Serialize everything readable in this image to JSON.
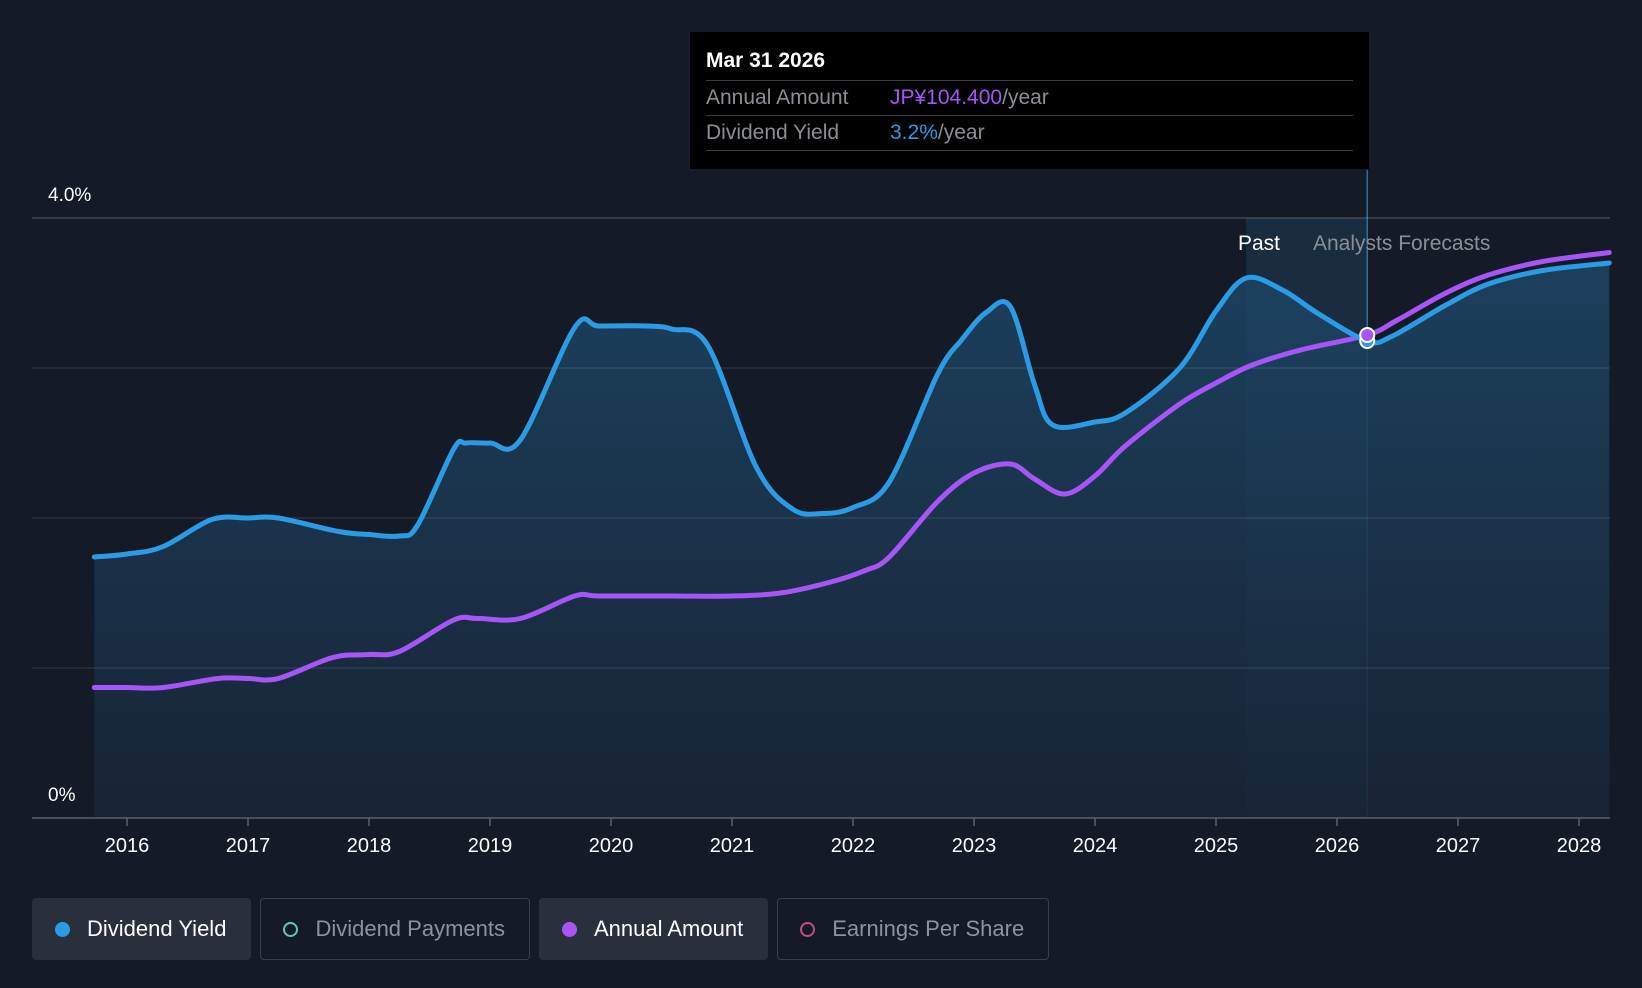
{
  "tooltip": {
    "date": "Mar 31 2026",
    "rows": [
      {
        "label": "Annual Amount",
        "value": "JP¥104.400",
        "unit": "/year"
      },
      {
        "label": "Dividend Yield",
        "value": "3.2%",
        "unit": "/year"
      }
    ]
  },
  "legend": [
    {
      "label": "Dividend Yield",
      "color": "#2b9be6",
      "active": true,
      "filled": true
    },
    {
      "label": "Dividend Payments",
      "color": "#5bc8c0",
      "active": false,
      "filled": false
    },
    {
      "label": "Annual Amount",
      "color": "#a855f7",
      "active": true,
      "filled": true
    },
    {
      "label": "Earnings Per Share",
      "color": "#c04c86",
      "active": false,
      "filled": false
    }
  ],
  "chart_data": {
    "type": "line",
    "ylim": [
      0,
      4.0
    ],
    "y_tick_labels": [
      "0%",
      "4.0%"
    ],
    "grid": true,
    "x_tick_labels": [
      "2016",
      "2017",
      "2018",
      "2019",
      "2020",
      "2021",
      "2022",
      "2023",
      "2024",
      "2025",
      "2026",
      "2027",
      "2028"
    ],
    "region_labels": {
      "past": "Past",
      "forecast": "Analysts Forecasts"
    },
    "highlight_x": 2026.25,
    "forecast_band": [
      2025.25,
      2026.25
    ],
    "series": [
      {
        "name": "Dividend Yield",
        "color": "#2b9be6",
        "area": true,
        "points": [
          [
            2015.73,
            1.74
          ],
          [
            2016.0,
            1.76
          ],
          [
            2016.3,
            1.81
          ],
          [
            2016.7,
            1.99
          ],
          [
            2017.0,
            2.0
          ],
          [
            2017.25,
            2.0
          ],
          [
            2017.75,
            1.91
          ],
          [
            2018.0,
            1.89
          ],
          [
            2018.25,
            1.88
          ],
          [
            2018.4,
            1.95
          ],
          [
            2018.7,
            2.46
          ],
          [
            2018.8,
            2.5
          ],
          [
            2019.0,
            2.5
          ],
          [
            2019.25,
            2.52
          ],
          [
            2019.7,
            3.27
          ],
          [
            2019.9,
            3.28
          ],
          [
            2020.3,
            3.28
          ],
          [
            2020.5,
            3.26
          ],
          [
            2020.8,
            3.15
          ],
          [
            2021.2,
            2.34
          ],
          [
            2021.5,
            2.06
          ],
          [
            2021.75,
            2.03
          ],
          [
            2022.0,
            2.07
          ],
          [
            2022.3,
            2.24
          ],
          [
            2022.7,
            2.96
          ],
          [
            2022.9,
            3.19
          ],
          [
            2023.1,
            3.37
          ],
          [
            2023.3,
            3.41
          ],
          [
            2023.5,
            2.89
          ],
          [
            2023.65,
            2.62
          ],
          [
            2024.0,
            2.64
          ],
          [
            2024.25,
            2.7
          ],
          [
            2024.7,
            3.0
          ],
          [
            2025.0,
            3.38
          ],
          [
            2025.25,
            3.6
          ],
          [
            2025.55,
            3.52
          ],
          [
            2025.85,
            3.36
          ],
          [
            2026.25,
            3.18
          ],
          [
            2026.45,
            3.21
          ],
          [
            2026.9,
            3.42
          ],
          [
            2027.25,
            3.56
          ],
          [
            2027.7,
            3.65
          ],
          [
            2028.25,
            3.7
          ]
        ]
      },
      {
        "name": "Annual Amount",
        "color": "#a855f7",
        "area": false,
        "points": [
          [
            2015.73,
            0.87
          ],
          [
            2016.0,
            0.87
          ],
          [
            2016.3,
            0.87
          ],
          [
            2016.75,
            0.93
          ],
          [
            2017.0,
            0.93
          ],
          [
            2017.25,
            0.93
          ],
          [
            2017.7,
            1.07
          ],
          [
            2018.0,
            1.09
          ],
          [
            2018.25,
            1.11
          ],
          [
            2018.7,
            1.32
          ],
          [
            2018.9,
            1.33
          ],
          [
            2019.25,
            1.33
          ],
          [
            2019.7,
            1.48
          ],
          [
            2019.9,
            1.48
          ],
          [
            2020.5,
            1.48
          ],
          [
            2021.0,
            1.48
          ],
          [
            2021.4,
            1.5
          ],
          [
            2021.8,
            1.57
          ],
          [
            2022.1,
            1.65
          ],
          [
            2022.3,
            1.74
          ],
          [
            2022.7,
            2.11
          ],
          [
            2023.0,
            2.3
          ],
          [
            2023.3,
            2.36
          ],
          [
            2023.5,
            2.26
          ],
          [
            2023.75,
            2.16
          ],
          [
            2024.0,
            2.28
          ],
          [
            2024.25,
            2.48
          ],
          [
            2024.7,
            2.76
          ],
          [
            2025.0,
            2.9
          ],
          [
            2025.3,
            3.02
          ],
          [
            2025.7,
            3.12
          ],
          [
            2026.25,
            3.22
          ],
          [
            2026.5,
            3.32
          ],
          [
            2026.9,
            3.5
          ],
          [
            2027.25,
            3.62
          ],
          [
            2027.7,
            3.71
          ],
          [
            2028.25,
            3.77
          ]
        ]
      }
    ]
  }
}
